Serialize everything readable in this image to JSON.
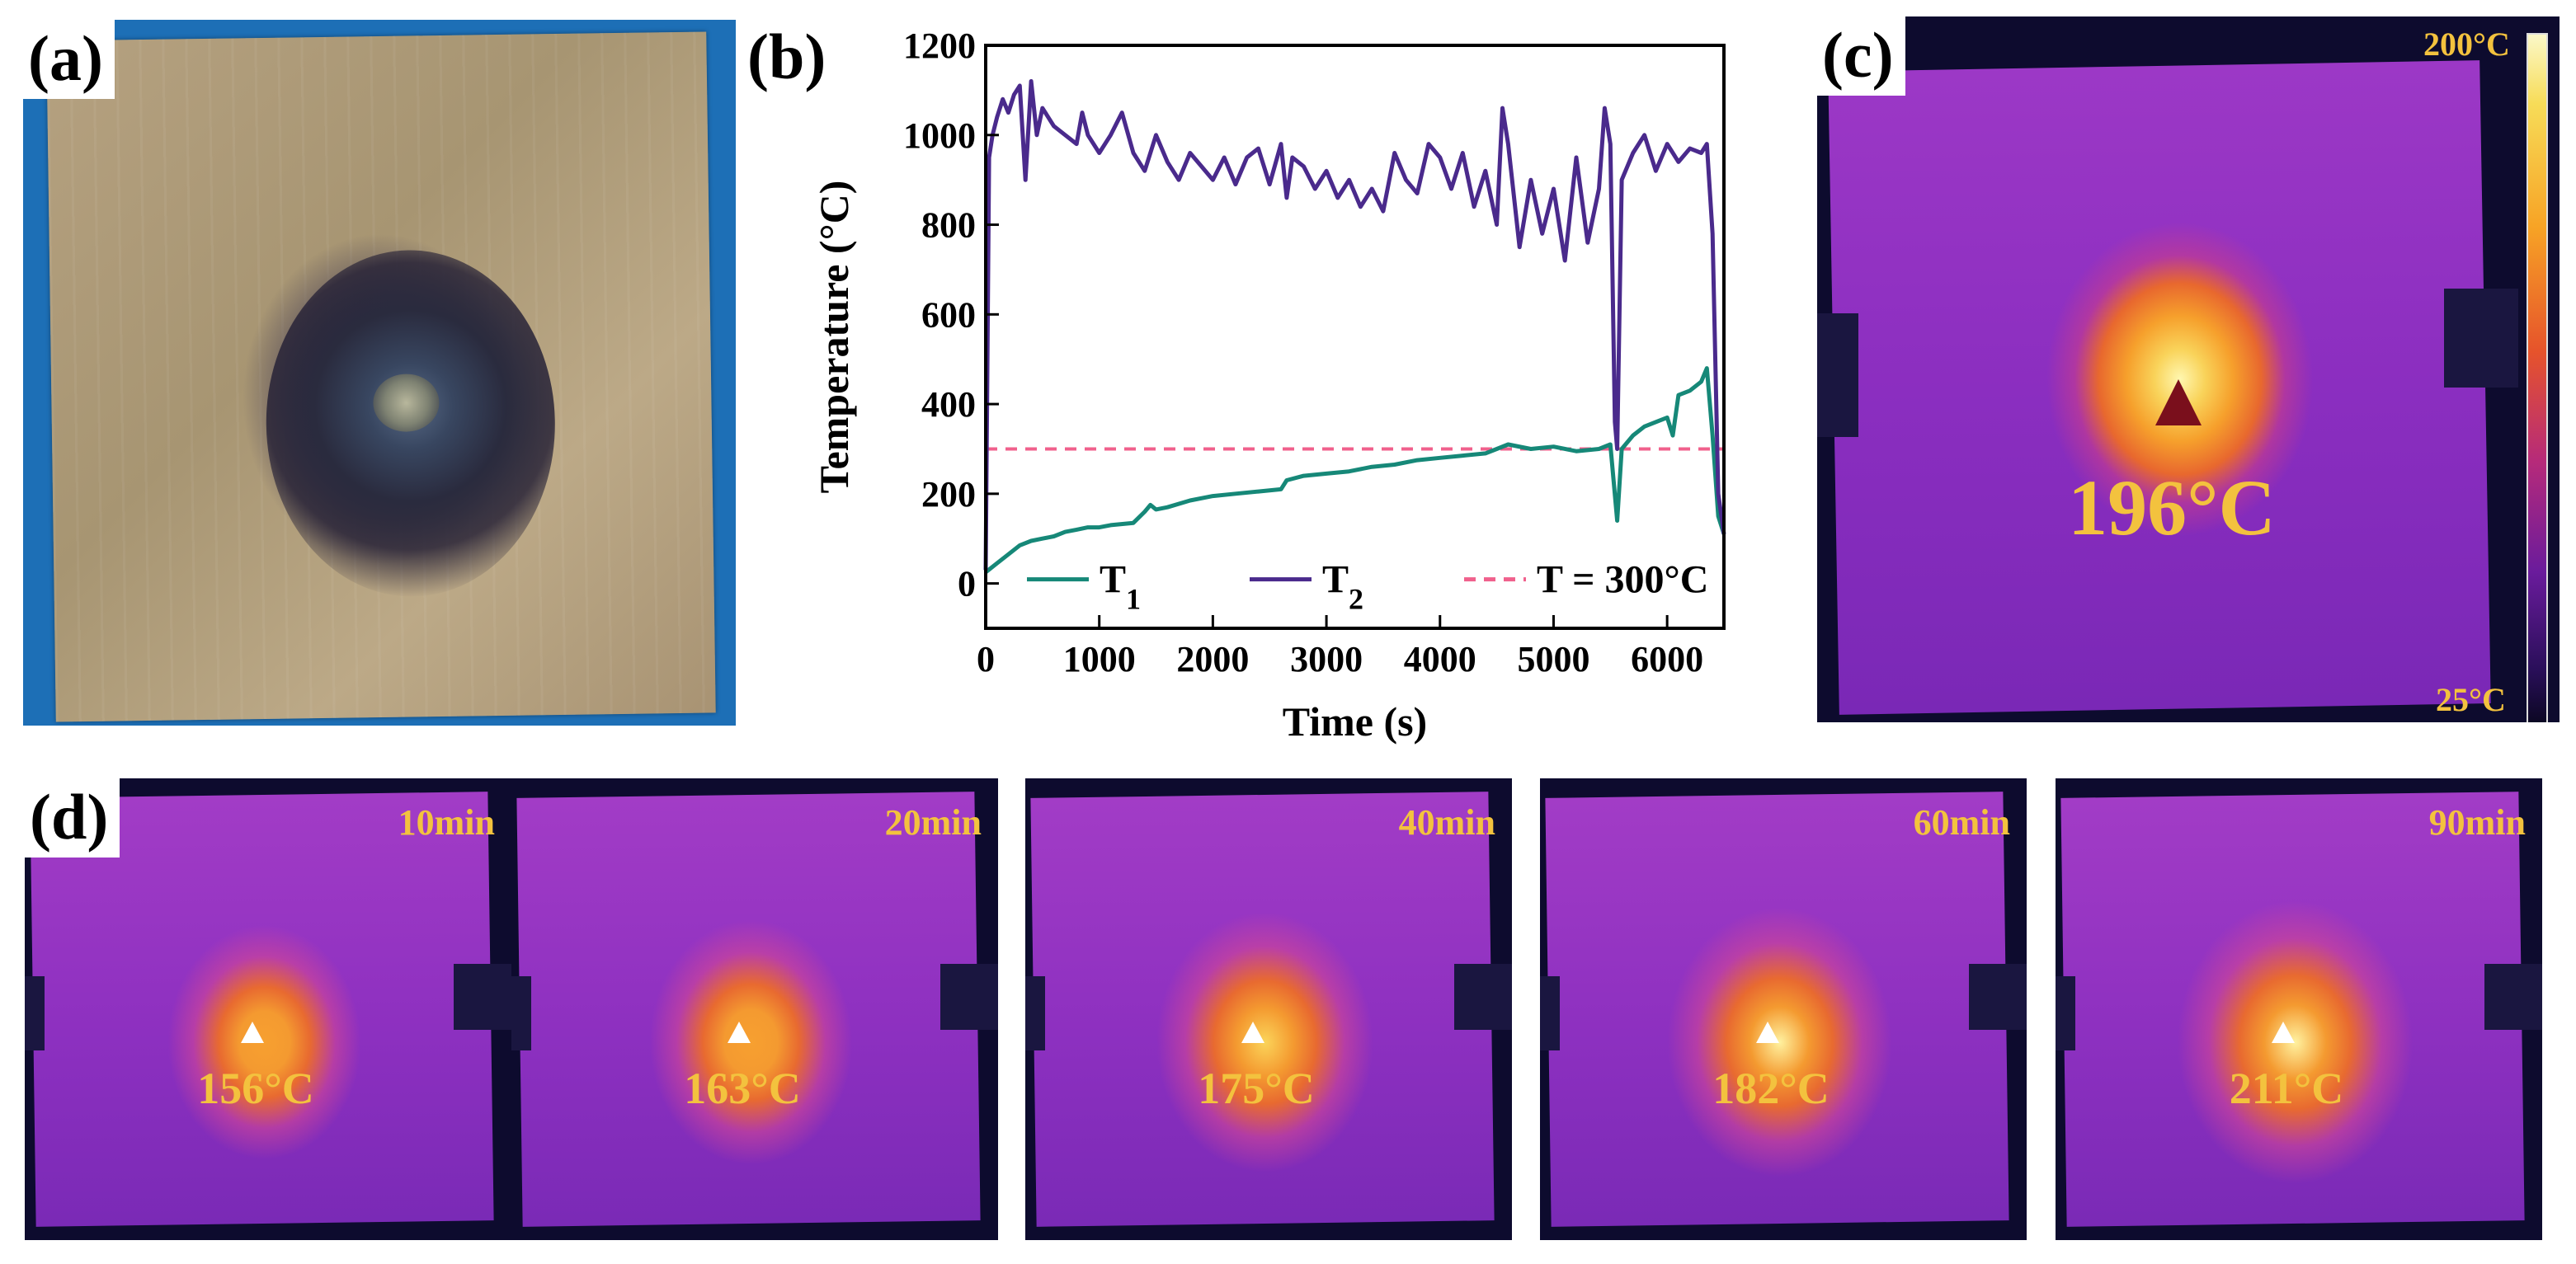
{
  "panel_labels": {
    "a": "(a)",
    "b": "(b)",
    "c": "(c)",
    "d": "(d)"
  },
  "panel_c": {
    "reading": "196°C",
    "colorbar_max": "200°C",
    "colorbar_min": "25°C"
  },
  "panel_d": [
    {
      "time": "10min",
      "reading": "156°C",
      "intensity": 0.55
    },
    {
      "time": "20min",
      "reading": "163°C",
      "intensity": 0.65
    },
    {
      "time": "40min",
      "reading": "175°C",
      "intensity": 0.8
    },
    {
      "time": "60min",
      "reading": "182°C",
      "intensity": 0.88
    },
    {
      "time": "90min",
      "reading": "211°C",
      "intensity": 1.0
    }
  ],
  "colors": {
    "t1": "#168878",
    "t2": "#4a2a8c",
    "threshold": "#f0608c",
    "readout": "#f3c23e"
  },
  "chart_data": {
    "type": "line",
    "xlabel": "Time (s)",
    "ylabel": "Temperature (°C)",
    "xlim": [
      0,
      6500
    ],
    "ylim": [
      -100,
      1200
    ],
    "xticks": [
      0,
      1000,
      2000,
      3000,
      4000,
      5000,
      6000
    ],
    "yticks": [
      0,
      200,
      400,
      600,
      800,
      1000,
      1200
    ],
    "threshold": {
      "name": "T = 300°C",
      "value": 300
    },
    "series": [
      {
        "name": "T",
        "sub": "1",
        "x": [
          0,
          100,
          200,
          300,
          400,
          500,
          600,
          700,
          800,
          900,
          1000,
          1100,
          1300,
          1400,
          1450,
          1500,
          1600,
          1800,
          2000,
          2200,
          2400,
          2600,
          2650,
          2800,
          3000,
          3200,
          3400,
          3600,
          3800,
          4000,
          4200,
          4400,
          4500,
          4600,
          4800,
          5000,
          5200,
          5400,
          5500,
          5560,
          5600,
          5700,
          5800,
          6000,
          6050,
          6100,
          6200,
          6300,
          6350,
          6400,
          6450,
          6500
        ],
        "y": [
          25,
          45,
          65,
          85,
          95,
          100,
          105,
          115,
          120,
          125,
          125,
          130,
          135,
          160,
          175,
          165,
          170,
          185,
          195,
          200,
          205,
          210,
          230,
          240,
          245,
          250,
          260,
          265,
          275,
          280,
          285,
          290,
          300,
          310,
          300,
          305,
          295,
          300,
          310,
          140,
          300,
          330,
          350,
          370,
          330,
          420,
          430,
          450,
          480,
          330,
          150,
          110
        ]
      },
      {
        "name": "T",
        "sub": "2",
        "x": [
          0,
          30,
          60,
          100,
          150,
          200,
          250,
          300,
          350,
          400,
          450,
          500,
          600,
          700,
          800,
          850,
          900,
          1000,
          1100,
          1200,
          1300,
          1400,
          1500,
          1600,
          1700,
          1800,
          1900,
          2000,
          2100,
          2200,
          2300,
          2400,
          2500,
          2600,
          2650,
          2700,
          2800,
          2900,
          3000,
          3100,
          3200,
          3300,
          3400,
          3500,
          3600,
          3700,
          3800,
          3900,
          4000,
          4100,
          4200,
          4300,
          4400,
          4500,
          4550,
          4600,
          4700,
          4800,
          4900,
          5000,
          5100,
          5200,
          5300,
          5400,
          5450,
          5500,
          5540,
          5560,
          5600,
          5700,
          5800,
          5900,
          6000,
          6100,
          6200,
          6300,
          6350,
          6400,
          6450,
          6500
        ],
        "y": [
          30,
          950,
          1000,
          1040,
          1080,
          1050,
          1090,
          1110,
          900,
          1120,
          1000,
          1060,
          1020,
          1000,
          980,
          1050,
          1000,
          960,
          1000,
          1050,
          960,
          920,
          1000,
          940,
          900,
          960,
          930,
          900,
          950,
          890,
          950,
          970,
          890,
          980,
          860,
          950,
          930,
          880,
          920,
          860,
          900,
          840,
          880,
          830,
          960,
          900,
          870,
          980,
          950,
          880,
          960,
          840,
          920,
          800,
          1060,
          980,
          750,
          900,
          780,
          880,
          720,
          950,
          760,
          880,
          1060,
          980,
          360,
          300,
          900,
          960,
          1000,
          920,
          980,
          940,
          970,
          960,
          980,
          780,
          200,
          110
        ]
      }
    ]
  }
}
